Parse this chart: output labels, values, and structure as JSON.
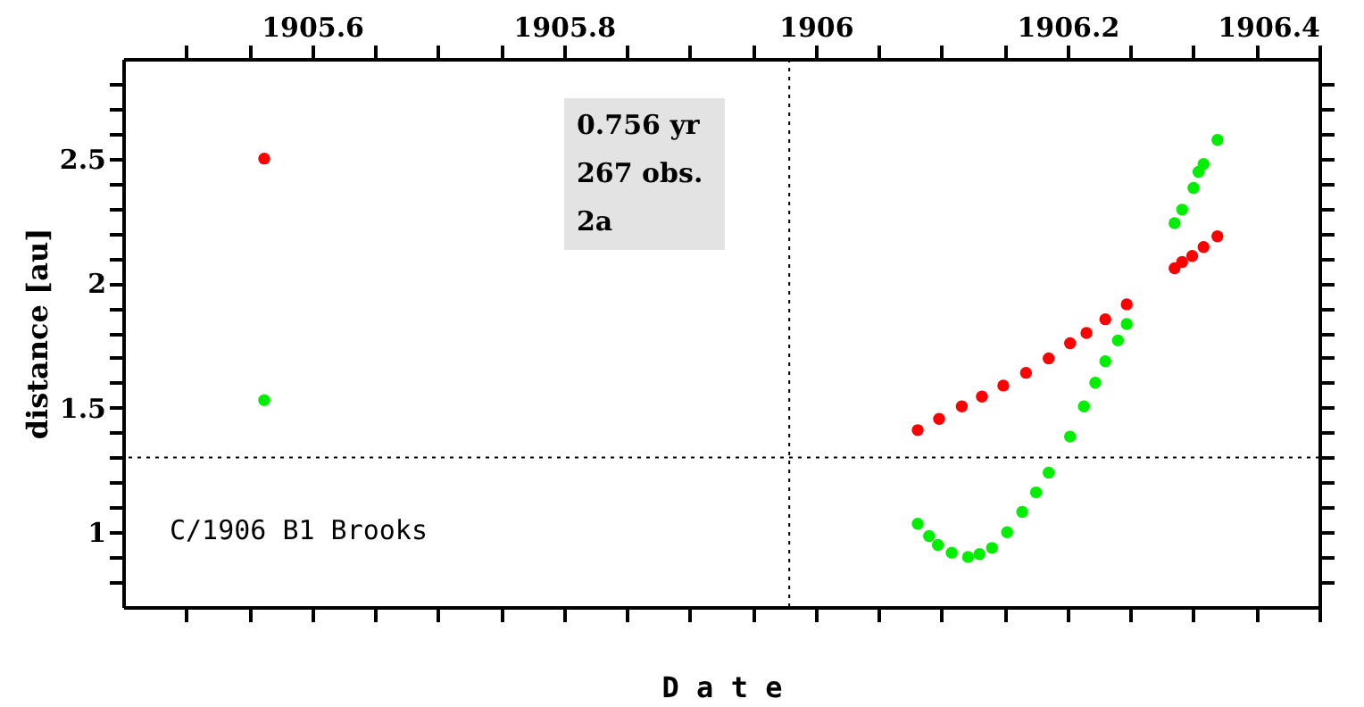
{
  "chart_data": {
    "type": "scatter",
    "xlabel": "D a t e",
    "ylabel": "distance [au]",
    "xlim": [
      1905.45,
      1906.4
    ],
    "ylim": [
      0.7,
      2.9
    ],
    "xticks": [
      {
        "value": 1905.5,
        "label": null
      },
      {
        "value": 1905.55,
        "label": null
      },
      1905.6,
      {
        "value": 1905.65,
        "label": null
      },
      {
        "value": 1905.7,
        "label": null
      },
      {
        "value": 1905.75,
        "label": null
      },
      1905.8,
      {
        "value": 1905.85,
        "label": null
      },
      {
        "value": 1905.9,
        "label": null
      },
      {
        "value": 1905.95,
        "label": null
      },
      1906,
      {
        "value": 1906.05,
        "label": null
      },
      {
        "value": 1906.1,
        "label": null
      },
      {
        "value": 1906.15,
        "label": null
      },
      1906.2,
      {
        "value": 1906.25,
        "label": null
      },
      {
        "value": 1906.3,
        "label": null
      },
      {
        "value": 1906.35,
        "label": null
      },
      1906.4
    ],
    "yticks": [
      {
        "value": 0.8,
        "label": null
      },
      {
        "value": 0.9,
        "label": null
      },
      1,
      {
        "value": 1.1,
        "label": null
      },
      {
        "value": 1.2,
        "label": null
      },
      {
        "value": 1.3,
        "label": null
      },
      {
        "value": 1.4,
        "label": null
      },
      1.5,
      {
        "value": 1.6,
        "label": null
      },
      {
        "value": 1.7,
        "label": null
      },
      {
        "value": 1.8,
        "label": null
      },
      {
        "value": 1.9,
        "label": null
      },
      2,
      {
        "value": 2.1,
        "label": null
      },
      {
        "value": 2.2,
        "label": null
      },
      {
        "value": 2.3,
        "label": null
      },
      {
        "value": 2.4,
        "label": null
      },
      2.5,
      {
        "value": 2.6,
        "label": null
      },
      {
        "value": 2.7,
        "label": null
      },
      {
        "value": 2.8,
        "label": null
      }
    ],
    "grid": false,
    "marker": "circle",
    "series": [
      {
        "color": "#ff0000",
        "x": [
          1905.562,
          1906.081,
          1906.098,
          1906.116,
          1906.132,
          1906.149,
          1906.167,
          1906.185,
          1906.202,
          1906.215,
          1906.23,
          1906.247,
          1906.285,
          1906.291,
          1906.299,
          1906.308,
          1906.319
        ],
        "values": [
          2.5,
          1.41,
          1.455,
          1.505,
          1.545,
          1.589,
          1.64,
          1.698,
          1.759,
          1.8,
          1.855,
          1.915,
          2.06,
          2.085,
          2.109,
          2.145,
          2.188
        ]
      },
      {
        "color": "#00ee00",
        "x": [
          1905.562,
          1906.081,
          1906.09,
          1906.097,
          1906.108,
          1906.121,
          1906.13,
          1906.14,
          1906.152,
          1906.164,
          1906.175,
          1906.185,
          1906.202,
          1906.213,
          1906.222,
          1906.23,
          1906.24,
          1906.247,
          1906.285,
          1906.291,
          1906.3,
          1906.304,
          1906.308,
          1906.319
        ],
        "values": [
          1.53,
          1.034,
          0.985,
          0.949,
          0.918,
          0.901,
          0.912,
          0.937,
          1.0,
          1.082,
          1.16,
          1.239,
          1.384,
          1.505,
          1.6,
          1.686,
          1.77,
          1.836,
          2.241,
          2.295,
          2.382,
          2.447,
          2.478,
          2.575
        ]
      }
    ],
    "ref_lines": [
      {
        "axis": "x",
        "value": 1905.979,
        "line_style": "dotted",
        "color": "#000000"
      },
      {
        "axis": "y",
        "value": 1.3,
        "line_style": "dotted",
        "color": "#000000"
      }
    ],
    "annotations": [
      "0.756 yr",
      "267 obs.",
      "2a",
      "C/1906 B1 Brooks"
    ]
  }
}
